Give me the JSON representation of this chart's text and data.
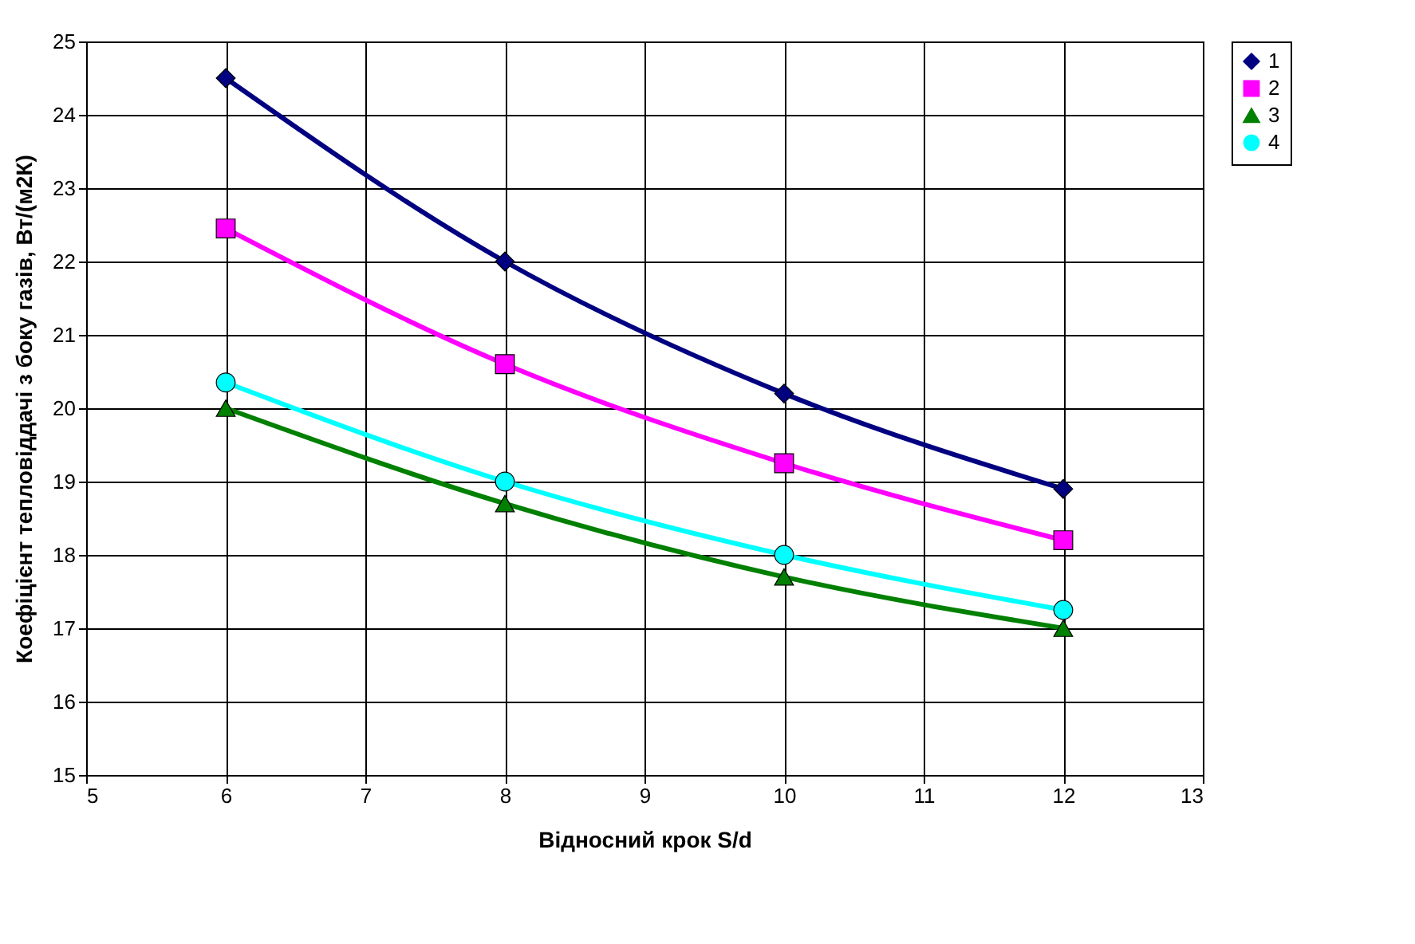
{
  "chart_data": {
    "type": "line",
    "xlabel": "Відносний крок S/d",
    "ylabel": "Коефіцієнт тепловіддачі з боку газів, Вт/(м2К)",
    "x": [
      6,
      8,
      10,
      12
    ],
    "series": [
      {
        "name": "1",
        "color": "#000080",
        "marker": "diamond",
        "values": [
          24.5,
          22.0,
          20.2,
          18.9
        ]
      },
      {
        "name": "2",
        "color": "#ff00ff",
        "marker": "square",
        "values": [
          22.45,
          20.6,
          19.25,
          18.2
        ]
      },
      {
        "name": "3",
        "color": "#008000",
        "marker": "triangle",
        "values": [
          20.0,
          18.7,
          17.7,
          17.0
        ]
      },
      {
        "name": "4",
        "color": "#00ffff",
        "marker": "circle",
        "values": [
          20.35,
          19.0,
          18.0,
          17.25
        ]
      }
    ],
    "xlim": [
      5,
      13
    ],
    "xticks": [
      5,
      6,
      7,
      8,
      9,
      10,
      11,
      12,
      13
    ],
    "ylim": [
      15,
      25
    ],
    "yticks": [
      15,
      16,
      17,
      18,
      19,
      20,
      21,
      22,
      23,
      24,
      25
    ],
    "grid": true,
    "legend": "right",
    "line_style": "solid"
  }
}
